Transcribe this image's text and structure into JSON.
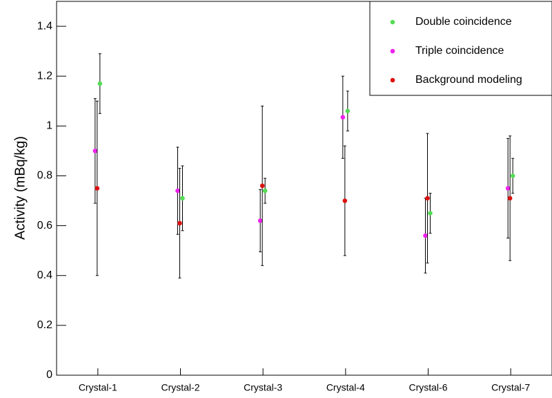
{
  "chart_data": {
    "type": "scatter",
    "y_label": "Activity (mBq/kg)",
    "categories": [
      "Crystal-1",
      "Crystal-2",
      "Crystal-3",
      "Crystal-4",
      "Crystal-6",
      "Crystal-7"
    ],
    "series": [
      {
        "name": "Double coincidence",
        "color": "#55dd55",
        "offset": 3,
        "values": [
          1.17,
          0.71,
          0.74,
          1.06,
          0.65,
          0.8
        ],
        "errors": [
          0.12,
          0.13,
          0.05,
          0.08,
          0.08,
          0.07
        ]
      },
      {
        "name": "Triple coincidence",
        "color": "#ee22ee",
        "offset": -4,
        "values": [
          0.9,
          0.74,
          0.62,
          1.035,
          0.56,
          0.75
        ],
        "errors": [
          0.21,
          0.175,
          0.125,
          0.165,
          0.15,
          0.2
        ]
      },
      {
        "name": "Background modeling",
        "color": "#dd1111",
        "offset": -1,
        "values": [
          0.75,
          0.61,
          0.76,
          0.7,
          0.71,
          0.71
        ],
        "errors": [
          0.35,
          0.22,
          0.32,
          0.22,
          0.26,
          0.25
        ]
      }
    ],
    "ylim": [
      0,
      1.5
    ],
    "yticks": [
      0,
      0.2,
      0.4,
      0.6,
      0.8,
      1,
      1.2,
      1.4
    ],
    "grid": false,
    "legend": "upper right"
  }
}
